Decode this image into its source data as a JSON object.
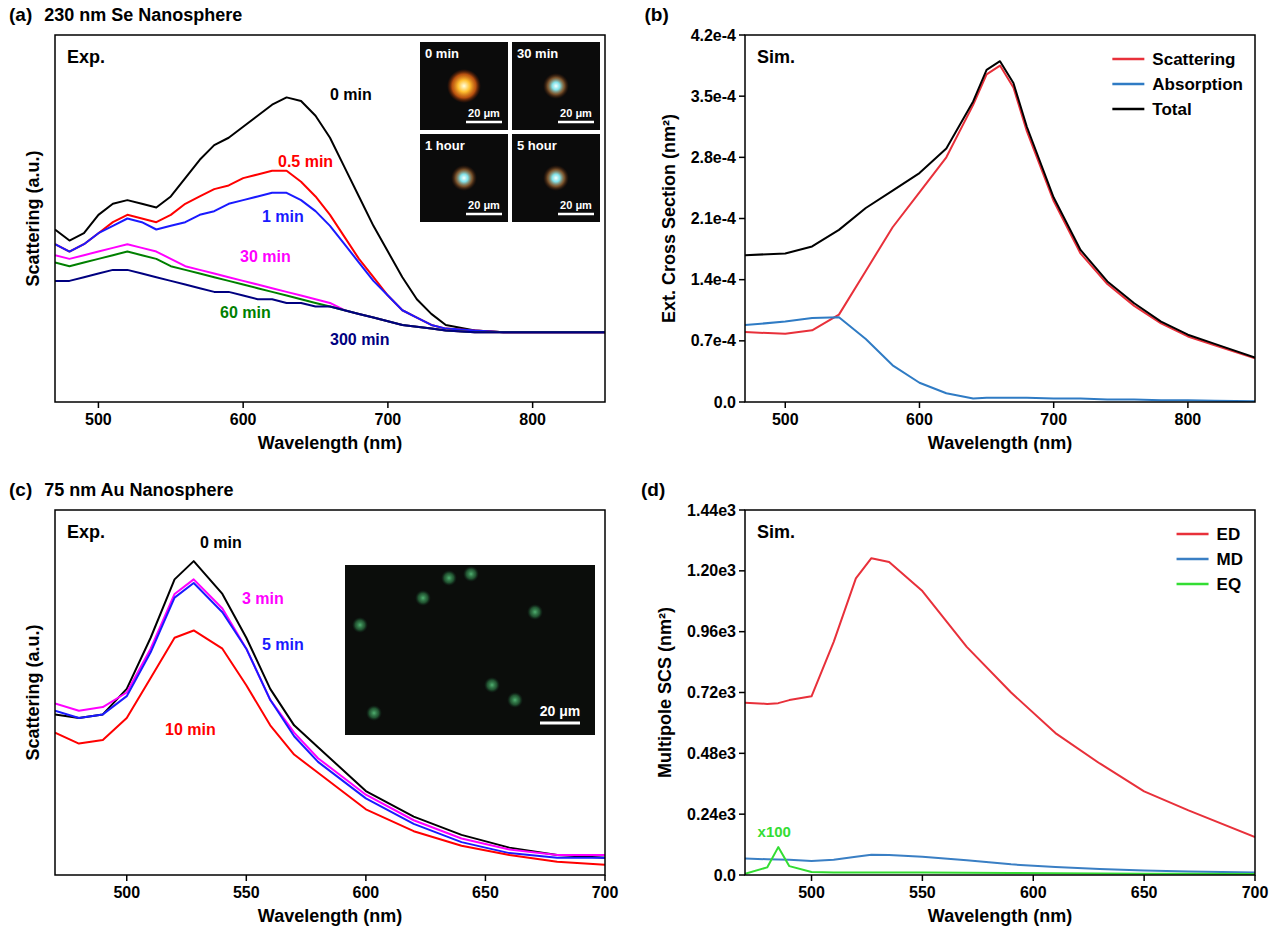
{
  "chart_data": [
    {
      "type": "line",
      "panel_label": "(a)",
      "title": "230 nm Se Nanosphere",
      "subtitle": "Exp.",
      "x_label": "Wavelength (nm)",
      "y_label": "Scattering (a.u.)",
      "xlim": [
        470,
        850
      ],
      "xticks": [
        500,
        600,
        700,
        800
      ],
      "ylim": [
        0,
        100
      ],
      "tick_labels": "x",
      "grid": false,
      "x": [
        470,
        480,
        490,
        500,
        510,
        520,
        530,
        540,
        550,
        560,
        570,
        580,
        590,
        600,
        610,
        620,
        630,
        640,
        650,
        660,
        670,
        680,
        690,
        700,
        710,
        720,
        730,
        740,
        760,
        780,
        800,
        850
      ],
      "series": [
        {
          "name": "0 min",
          "color": "#000000",
          "values": [
            47,
            44,
            46,
            51,
            54,
            55,
            54,
            53,
            56,
            61,
            66,
            70,
            72,
            75,
            78,
            81,
            83,
            82,
            78,
            72,
            64,
            56,
            48,
            41,
            34,
            28,
            24,
            21,
            19.5,
            19,
            19,
            19
          ]
        },
        {
          "name": "0.5 min",
          "color": "#ff0000",
          "values": [
            43,
            41,
            43,
            46,
            49,
            51,
            50,
            49,
            51,
            54,
            56,
            58,
            59,
            61,
            62,
            63,
            63,
            60,
            56,
            51,
            45,
            39,
            34,
            29,
            25,
            23,
            21,
            20,
            19.5,
            19,
            19,
            19
          ]
        },
        {
          "name": "1 min",
          "color": "#1a1aff",
          "values": [
            43,
            41,
            43,
            46,
            48,
            50,
            49,
            47,
            48,
            49,
            51,
            52,
            54,
            55,
            56,
            57,
            57,
            55,
            52,
            48,
            43,
            38,
            33,
            29,
            25,
            23,
            21,
            20,
            19.5,
            19,
            19,
            19
          ]
        },
        {
          "name": "30 min",
          "color": "#ff00ff",
          "values": [
            40,
            39,
            40,
            41,
            42,
            43,
            42,
            41,
            39,
            37,
            36,
            35,
            34,
            33,
            32,
            31,
            30,
            29,
            28,
            27,
            25,
            24,
            23,
            22,
            21,
            20.5,
            20,
            19.5,
            19,
            19,
            19,
            19
          ]
        },
        {
          "name": "60 min",
          "color": "#008000",
          "values": [
            38,
            37,
            38,
            39,
            40,
            41,
            40,
            39,
            37,
            36,
            35,
            34,
            33,
            32,
            31,
            30,
            29,
            28,
            27,
            26,
            25,
            24,
            23,
            22,
            21,
            20.5,
            20,
            19.5,
            19,
            19,
            19,
            19
          ]
        },
        {
          "name": "300 min",
          "color": "#000080",
          "values": [
            33,
            33,
            34,
            35,
            36,
            36,
            35,
            34,
            33,
            32,
            31,
            30,
            30,
            29,
            28,
            28,
            27,
            27,
            26,
            26,
            25,
            24,
            23,
            22,
            21,
            20.5,
            20,
            19.5,
            19,
            19,
            19,
            19
          ]
        }
      ],
      "inset": {
        "labels": [
          "0 min",
          "30 min",
          "1 hour",
          "5 hour"
        ],
        "scale_bar": "20 μm"
      }
    },
    {
      "type": "line",
      "panel_label": "(b)",
      "subtitle": "Sim.",
      "x_label": "Wavelength (nm)",
      "y_label": "Ext. Cross Section (nm²)",
      "xlim": [
        470,
        850
      ],
      "xticks": [
        500,
        600,
        700,
        800
      ],
      "ylim": [
        0,
        0.00042
      ],
      "yticks": [
        {
          "value": 0,
          "label": "0.0"
        },
        {
          "value": 7e-05,
          "label": "0.7e-4"
        },
        {
          "value": 0.00014,
          "label": "1.4e-4"
        },
        {
          "value": 0.00021,
          "label": "2.1e-4"
        },
        {
          "value": 0.00028,
          "label": "2.8e-4"
        },
        {
          "value": 0.00035,
          "label": "3.5e-4"
        },
        {
          "value": 0.00042,
          "label": "4.2e-4"
        }
      ],
      "grid": false,
      "legend": "upper right",
      "x": [
        470,
        500,
        520,
        540,
        560,
        580,
        600,
        620,
        640,
        650,
        660,
        670,
        680,
        700,
        720,
        740,
        760,
        780,
        800,
        820,
        850
      ],
      "series": [
        {
          "name": "Scattering",
          "color": "#e8303a",
          "values": [
            8e-05,
            7.8e-05,
            8.2e-05,
            0.0001,
            0.00015,
            0.0002,
            0.00024,
            0.00028,
            0.00034,
            0.000375,
            0.000385,
            0.00036,
            0.00031,
            0.00023,
            0.00017,
            0.000135,
            0.00011,
            9e-05,
            7.5e-05,
            6.5e-05,
            5e-05
          ]
        },
        {
          "name": "Absorption",
          "color": "#2f7bc4",
          "values": [
            8.8e-05,
            9.2e-05,
            9.6e-05,
            9.7e-05,
            7.2e-05,
            4.2e-05,
            2.2e-05,
            1e-05,
            4e-06,
            5e-06,
            5e-06,
            5e-06,
            5e-06,
            4e-06,
            4e-06,
            3e-06,
            3e-06,
            2e-06,
            2e-06,
            1.5e-06,
            1e-06
          ]
        },
        {
          "name": "Total",
          "color": "#000000",
          "values": [
            0.000168,
            0.00017,
            0.000178,
            0.000197,
            0.000222,
            0.000242,
            0.000262,
            0.00029,
            0.000344,
            0.00038,
            0.00039,
            0.000365,
            0.000315,
            0.000234,
            0.000174,
            0.000138,
            0.000113,
            9.2e-05,
            7.7e-05,
            6.65e-05,
            5.1e-05
          ]
        }
      ]
    },
    {
      "type": "line",
      "panel_label": "(c)",
      "title": "75 nm Au Nanosphere",
      "subtitle": "Exp.",
      "x_label": "Wavelength (nm)",
      "y_label": "Scattering (a.u.)",
      "xlim": [
        470,
        700
      ],
      "xticks": [
        500,
        550,
        600,
        650,
        700
      ],
      "ylim": [
        0,
        100
      ],
      "tick_labels": "x",
      "grid": false,
      "x": [
        470,
        480,
        490,
        500,
        510,
        520,
        528,
        540,
        550,
        560,
        570,
        580,
        600,
        620,
        640,
        660,
        680,
        700
      ],
      "series": [
        {
          "name": "0 min",
          "color": "#000000",
          "values": [
            44,
            43,
            44,
            51,
            65,
            81,
            86,
            77,
            65,
            51,
            41,
            35,
            23,
            16,
            11,
            7.5,
            5.5,
            4.7
          ]
        },
        {
          "name": "3 min",
          "color": "#ff00ff",
          "values": [
            47,
            45,
            46,
            50,
            62,
            77,
            81,
            73,
            62,
            48,
            39,
            32,
            22,
            15,
            10,
            7,
            5.5,
            5.5
          ]
        },
        {
          "name": "5 min",
          "color": "#1a1aff",
          "values": [
            45,
            43,
            44,
            49,
            61,
            76,
            80,
            72,
            62,
            48,
            38,
            31,
            21,
            14,
            9,
            6,
            4.7,
            4.7
          ]
        },
        {
          "name": "10 min",
          "color": "#ff0000",
          "values": [
            39,
            36,
            37,
            43,
            54,
            65,
            67,
            62,
            52,
            41,
            33,
            28,
            18,
            12,
            8,
            5.5,
            3.6,
            2.8
          ]
        }
      ],
      "inset": {
        "scale_bar": "20 μm"
      }
    },
    {
      "type": "line",
      "panel_label": "(d)",
      "subtitle": "Sim.",
      "x_label": "Wavelength (nm)",
      "y_label": "Multipole SCS (nm²)",
      "xlim": [
        470,
        700
      ],
      "xticks": [
        500,
        550,
        600,
        650,
        700
      ],
      "ylim": [
        0,
        1440
      ],
      "yticks": [
        {
          "value": 0,
          "label": "0.0"
        },
        {
          "value": 240,
          "label": "0.24e3"
        },
        {
          "value": 480,
          "label": "0.48e3"
        },
        {
          "value": 720,
          "label": "0.72e3"
        },
        {
          "value": 960,
          "label": "0.96e3"
        },
        {
          "value": 1200,
          "label": "1.20e3"
        },
        {
          "value": 1440,
          "label": "1.44e3"
        }
      ],
      "grid": false,
      "legend": "upper right",
      "x": [
        470,
        480,
        485,
        490,
        500,
        510,
        520,
        527,
        535,
        550,
        570,
        590,
        610,
        630,
        650,
        670,
        700
      ],
      "series": [
        {
          "name": "ED",
          "color": "#e8303a",
          "values": [
            680,
            675,
            678,
            690,
            705,
            920,
            1170,
            1250,
            1235,
            1120,
            900,
            720,
            560,
            440,
            330,
            255,
            150
          ]
        },
        {
          "name": "MD",
          "color": "#3a7fc4",
          "values": [
            65,
            62,
            61,
            60,
            55,
            60,
            72,
            80,
            79,
            72,
            58,
            42,
            32,
            24,
            18,
            14,
            10
          ]
        },
        {
          "name": "EQ",
          "color": "#33dd33",
          "values": [
            5,
            30,
            110,
            35,
            12,
            10,
            10,
            10,
            10,
            10,
            9,
            8,
            7,
            6,
            5,
            5,
            4
          ]
        }
      ],
      "annotations": [
        {
          "text": "x100",
          "x": 485,
          "y": 110,
          "color": "#33dd33"
        }
      ]
    }
  ]
}
